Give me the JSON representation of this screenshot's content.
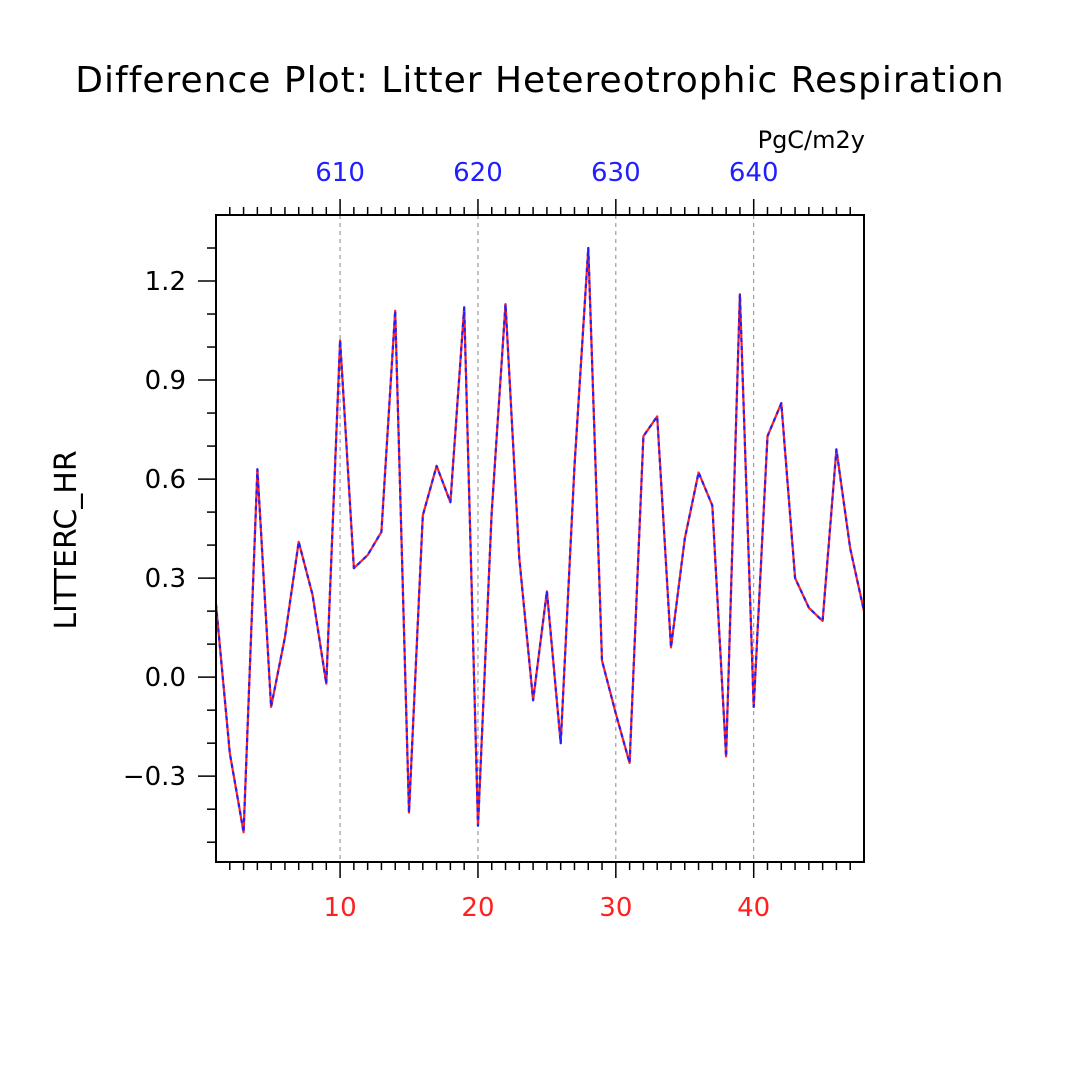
{
  "chart_data": {
    "type": "line",
    "title": "Difference Plot: Litter Hetereotrophic Respiration",
    "units": "PgC/m2y",
    "ylabel": "LITTERC_HR",
    "xlabel": "",
    "xlim": [
      1,
      48
    ],
    "ylim": [
      -0.56,
      1.4
    ],
    "y_ticks": [
      -0.3,
      0.0,
      0.3,
      0.6,
      0.9,
      1.2
    ],
    "y_tick_labels": [
      "−0.3",
      "0.0",
      "0.3",
      "0.6",
      "0.9",
      "1.2"
    ],
    "x_ticks_bottom": [
      10,
      20,
      30,
      40
    ],
    "x_tick_labels_bottom": [
      "10",
      "20",
      "30",
      "40"
    ],
    "x_ticks_top": [
      10,
      20,
      30,
      40
    ],
    "x_tick_labels_top": [
      "610",
      "620",
      "630",
      "640"
    ],
    "grid": "vertical-dashed",
    "colors": {
      "bottom_axis_labels": "#ff2020",
      "top_axis_labels": "#2020ff",
      "series_1": "#ff2020",
      "series_2": "#2020ff"
    },
    "x": [
      1,
      2,
      3,
      4,
      5,
      6,
      7,
      8,
      9,
      10,
      11,
      12,
      13,
      14,
      15,
      16,
      17,
      18,
      19,
      20,
      21,
      22,
      23,
      24,
      25,
      26,
      27,
      28,
      29,
      30,
      31,
      32,
      33,
      34,
      35,
      36,
      37,
      38,
      39,
      40,
      41,
      42,
      43,
      44,
      45,
      46,
      47,
      48
    ],
    "series": [
      {
        "values": [
          0.22,
          -0.23,
          -0.47,
          0.63,
          -0.09,
          0.12,
          0.41,
          0.25,
          -0.02,
          1.02,
          0.33,
          0.37,
          0.44,
          1.11,
          -0.41,
          0.49,
          0.64,
          0.53,
          1.12,
          -0.45,
          0.5,
          1.13,
          0.36,
          -0.07,
          0.26,
          -0.2,
          0.64,
          1.3,
          0.05,
          -0.11,
          -0.26,
          0.73,
          0.79,
          0.09,
          0.42,
          0.62,
          0.52,
          -0.24,
          1.16,
          -0.09,
          0.73,
          0.83,
          0.3,
          0.21,
          0.17,
          0.69,
          0.39,
          0.2
        ]
      },
      {
        "values": [
          0.22,
          -0.23,
          -0.47,
          0.63,
          -0.09,
          0.12,
          0.41,
          0.25,
          -0.02,
          1.02,
          0.33,
          0.37,
          0.44,
          1.11,
          -0.41,
          0.49,
          0.64,
          0.53,
          1.12,
          -0.45,
          0.5,
          1.13,
          0.36,
          -0.07,
          0.26,
          -0.2,
          0.64,
          1.3,
          0.05,
          -0.11,
          -0.26,
          0.73,
          0.79,
          0.09,
          0.42,
          0.62,
          0.52,
          -0.24,
          1.16,
          -0.09,
          0.73,
          0.83,
          0.3,
          0.21,
          0.17,
          0.69,
          0.39,
          0.2
        ]
      }
    ]
  }
}
